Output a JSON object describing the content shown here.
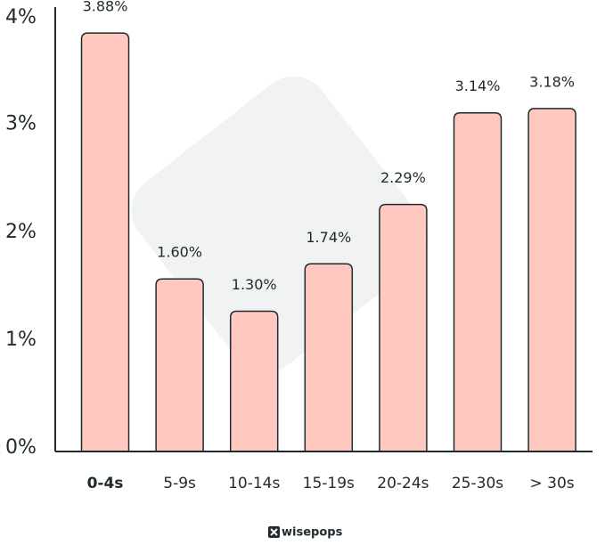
{
  "chart_data": {
    "type": "bar",
    "categories": [
      "0-4s",
      "5-9s",
      "10-14s",
      "15-19s",
      "20-24s",
      "25-30s",
      "> 30s"
    ],
    "values": [
      3.88,
      1.6,
      1.3,
      1.74,
      2.29,
      3.14,
      3.18
    ],
    "value_labels": [
      "3.88%",
      "1.60%",
      "1.30%",
      "1.74%",
      "2.29%",
      "3.14%",
      "3.18%"
    ],
    "color": "#ffc9bf",
    "ylim": [
      0,
      4.12
    ],
    "yticks": [
      {
        "value": 0,
        "label": "0%"
      },
      {
        "value": 1,
        "label": "1%"
      },
      {
        "value": 2,
        "label": "2%"
      },
      {
        "value": 3,
        "label": "3%"
      },
      {
        "value": 4,
        "label": "4%"
      }
    ],
    "grid": false,
    "caption": "wisepops"
  }
}
